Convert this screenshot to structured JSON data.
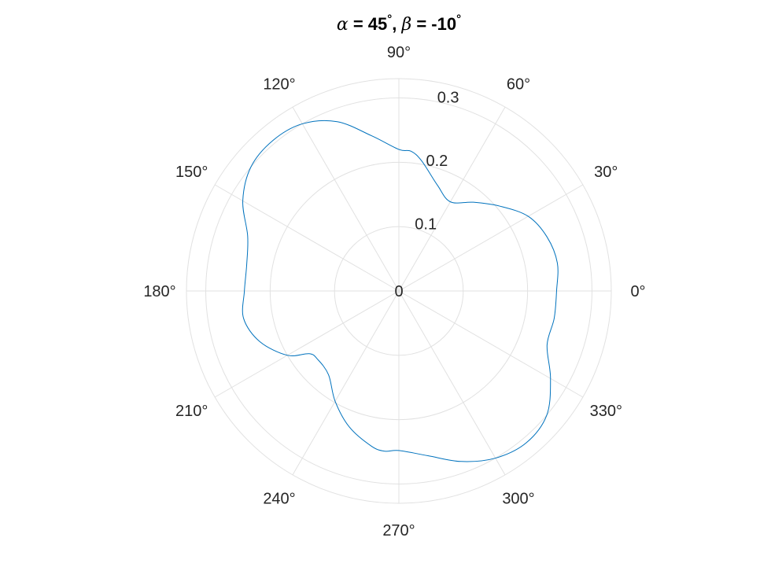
{
  "chart_data": {
    "type": "line",
    "coordinate_system": "polar",
    "title": {
      "alpha_symbol": "α",
      "alpha_text": " = 45",
      "alpha_degree": "°",
      "separator": ", ",
      "beta_symbol": "β",
      "beta_text": " = -10",
      "beta_degree": "°"
    },
    "theta_ticks": [
      {
        "deg": 0,
        "label": "0°"
      },
      {
        "deg": 30,
        "label": "30°"
      },
      {
        "deg": 60,
        "label": "60°"
      },
      {
        "deg": 90,
        "label": "90°"
      },
      {
        "deg": 120,
        "label": "120°"
      },
      {
        "deg": 150,
        "label": "150°"
      },
      {
        "deg": 180,
        "label": "180°"
      },
      {
        "deg": 210,
        "label": "210°"
      },
      {
        "deg": 240,
        "label": "240°"
      },
      {
        "deg": 270,
        "label": "270°"
      },
      {
        "deg": 300,
        "label": "300°"
      },
      {
        "deg": 330,
        "label": "330°"
      }
    ],
    "r_ticks": [
      {
        "value": 0,
        "label": "0"
      },
      {
        "value": 0.1,
        "label": "0.1"
      },
      {
        "value": 0.2,
        "label": "0.2"
      },
      {
        "value": 0.3,
        "label": "0.3"
      }
    ],
    "rlim": [
      0,
      0.33
    ],
    "grid": true,
    "series": [
      {
        "color": "#0072bd",
        "theta_deg": [
          0,
          10,
          20,
          30,
          40,
          50,
          60,
          70,
          80,
          85,
          90,
          100,
          110,
          120,
          130,
          140,
          150,
          160,
          170,
          180,
          190,
          200,
          210,
          215,
          220,
          230,
          240,
          250,
          260,
          265,
          270,
          280,
          290,
          300,
          310,
          320,
          330,
          340,
          350,
          360
        ],
        "r": [
          0.245,
          0.25,
          0.245,
          0.232,
          0.205,
          0.18,
          0.16,
          0.175,
          0.205,
          0.218,
          0.22,
          0.245,
          0.28,
          0.3,
          0.305,
          0.3,
          0.28,
          0.25,
          0.24,
          0.24,
          0.245,
          0.23,
          0.2,
          0.17,
          0.165,
          0.17,
          0.198,
          0.225,
          0.245,
          0.25,
          0.248,
          0.26,
          0.282,
          0.3,
          0.308,
          0.3,
          0.272,
          0.245,
          0.245,
          0.245
        ]
      }
    ]
  },
  "colors": {
    "grid": "#e1e1e1",
    "tick_text": "#262626",
    "title": "#000000"
  }
}
